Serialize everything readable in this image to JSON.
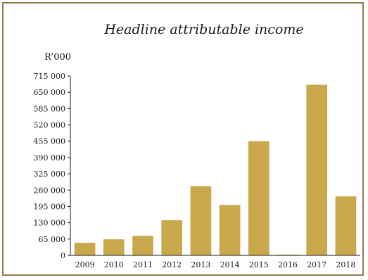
{
  "chart_data": {
    "type": "bar",
    "title": "Headline attributable income",
    "unit_label": "R’000",
    "categories": [
      "2009",
      "2010",
      "2011",
      "2012",
      "2013",
      "2014",
      "2015",
      "2016",
      "2017",
      "2018"
    ],
    "values": [
      50000,
      64000,
      78000,
      140000,
      276000,
      201000,
      455000,
      3000,
      680000,
      235000
    ],
    "ylim": [
      0,
      715000
    ],
    "yticks": [
      0,
      65000,
      130000,
      195000,
      260000,
      325000,
      390000,
      455000,
      520000,
      585000,
      650000,
      715000
    ],
    "ytick_labels": [
      "0",
      "65 000",
      "130 000",
      "195 000",
      "260 000",
      "325 000",
      "390 000",
      "455 000",
      "520 000",
      "585 000",
      "650 000",
      "715 000"
    ],
    "bar_color": "#c9a84c",
    "grid": false,
    "legend": "none"
  }
}
